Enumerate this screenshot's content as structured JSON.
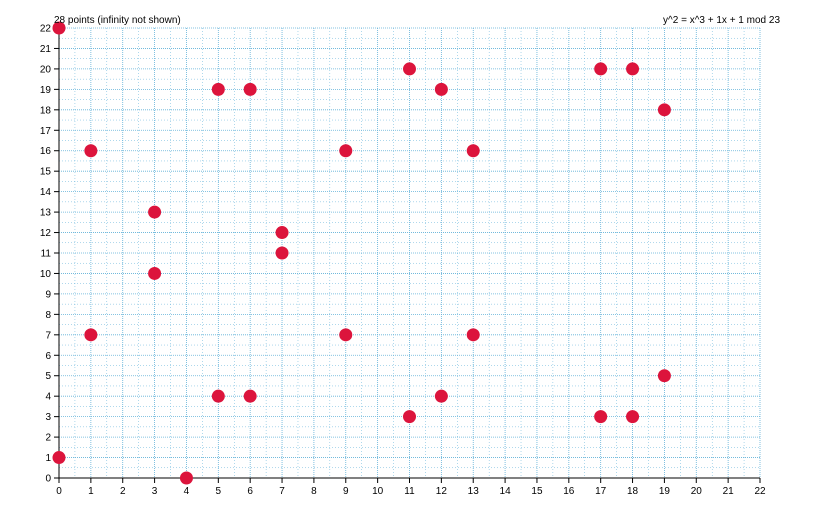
{
  "chart_data": {
    "type": "scatter",
    "title": "",
    "xlabel": "",
    "ylabel": "",
    "xlim": [
      0,
      22
    ],
    "ylim": [
      0,
      22
    ],
    "grid": true,
    "annotations": {
      "left": "28 points (infinity not shown)",
      "right": "y^2 = x^3 + 1x + 1 mod 23"
    },
    "x_ticks": [
      0,
      1,
      2,
      3,
      4,
      5,
      6,
      7,
      8,
      9,
      10,
      11,
      12,
      13,
      14,
      15,
      16,
      17,
      18,
      19,
      20,
      21,
      22
    ],
    "y_ticks": [
      0,
      1,
      2,
      3,
      4,
      5,
      6,
      7,
      8,
      9,
      10,
      11,
      12,
      13,
      14,
      15,
      16,
      17,
      18,
      19,
      20,
      21,
      22
    ],
    "points": [
      {
        "x": 0,
        "y": 1
      },
      {
        "x": 0,
        "y": 22
      },
      {
        "x": 1,
        "y": 7
      },
      {
        "x": 1,
        "y": 16
      },
      {
        "x": 3,
        "y": 10
      },
      {
        "x": 3,
        "y": 13
      },
      {
        "x": 4,
        "y": 0
      },
      {
        "x": 5,
        "y": 4
      },
      {
        "x": 5,
        "y": 19
      },
      {
        "x": 6,
        "y": 4
      },
      {
        "x": 6,
        "y": 19
      },
      {
        "x": 7,
        "y": 11
      },
      {
        "x": 7,
        "y": 12
      },
      {
        "x": 9,
        "y": 7
      },
      {
        "x": 9,
        "y": 16
      },
      {
        "x": 11,
        "y": 3
      },
      {
        "x": 11,
        "y": 20
      },
      {
        "x": 12,
        "y": 4
      },
      {
        "x": 12,
        "y": 19
      },
      {
        "x": 13,
        "y": 7
      },
      {
        "x": 13,
        "y": 16
      },
      {
        "x": 17,
        "y": 3
      },
      {
        "x": 17,
        "y": 20
      },
      {
        "x": 18,
        "y": 3
      },
      {
        "x": 18,
        "y": 20
      },
      {
        "x": 19,
        "y": 5
      },
      {
        "x": 19,
        "y": 18
      }
    ]
  },
  "colors": {
    "point": "#dc143c",
    "grid": "#5fb0d8",
    "axis": "#000000"
  }
}
